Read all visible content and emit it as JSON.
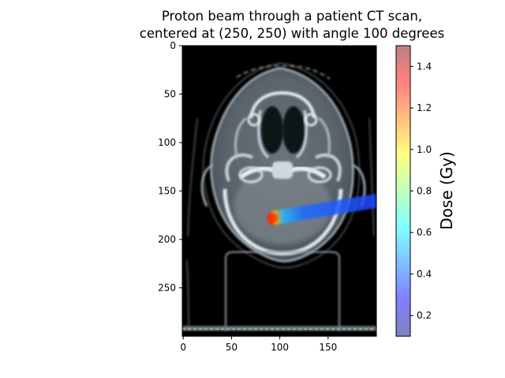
{
  "chart_data": {
    "type": "heatmap",
    "title_lines": [
      "Proton beam through a patient CT scan,",
      "centered at (250, 250) with angle 100 degrees"
    ],
    "image": {
      "xlim": [
        -1,
        200
      ],
      "ylim": [
        300,
        0
      ],
      "xticks": [
        0,
        50,
        100,
        150
      ],
      "yticks": [
        0,
        50,
        100,
        150,
        200,
        250
      ],
      "content": "grayscale axial CT slice of a head with a dose overlay"
    },
    "beam": {
      "entry": [
        200,
        160
      ],
      "end": [
        93,
        178
      ],
      "peak_dose": 1.5,
      "entrance_dose": 0.35
    },
    "colorbar": {
      "label": "Dose (Gy)",
      "range": [
        0.1,
        1.5
      ],
      "ticks": [
        "0.2",
        "0.4",
        "0.6",
        "0.8",
        "1.0",
        "1.2",
        "1.4"
      ],
      "tick_values": [
        0.2,
        0.4,
        0.6,
        0.8,
        1.0,
        1.2,
        1.4
      ],
      "colormap": "jet",
      "alpha": 0.5
    }
  }
}
